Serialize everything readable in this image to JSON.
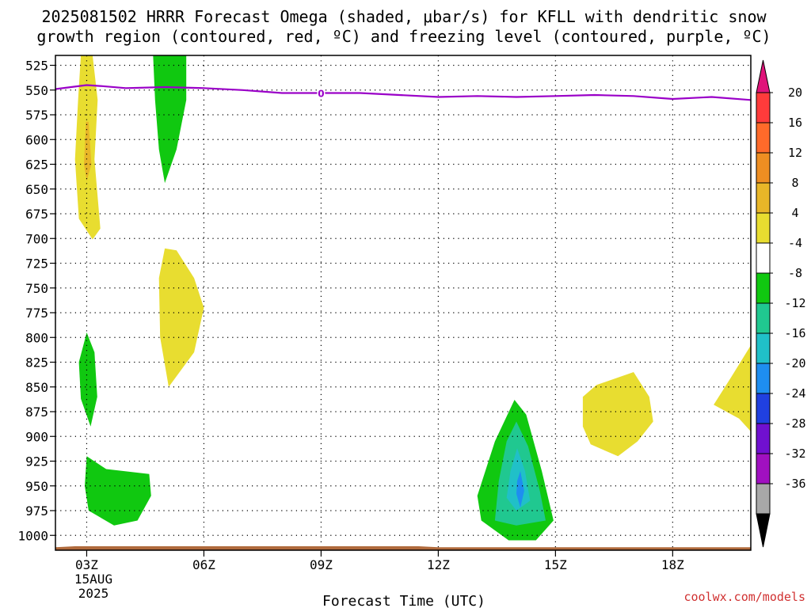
{
  "title_line1": "2025081502 HRRR Forecast Omega (shaded, μbar/s) for KFLL with dendritic snow",
  "title_line2": "growth region (contoured, red, ºC) and freezing level (contoured, purple, ºC)",
  "xlabel": "Forecast Time (UTC)",
  "date_line1": "15AUG",
  "date_line2": "2025",
  "credit": "coolwx.com/models",
  "chart_data": {
    "type": "heatmap",
    "x_unit": "hour UTC",
    "xlim": [
      2.2,
      20.0
    ],
    "ylim": [
      1015,
      515
    ],
    "y_ticks": [
      525,
      550,
      575,
      600,
      625,
      650,
      675,
      700,
      725,
      750,
      775,
      800,
      825,
      850,
      875,
      900,
      925,
      950,
      975,
      1000
    ],
    "x_ticks": [
      {
        "hour": 3,
        "label": "03Z"
      },
      {
        "hour": 6,
        "label": "06Z"
      },
      {
        "hour": 9,
        "label": "09Z"
      },
      {
        "hour": 12,
        "label": "12Z"
      },
      {
        "hour": 15,
        "label": "15Z"
      },
      {
        "hour": 18,
        "label": "18Z"
      }
    ],
    "grid": true,
    "colorbar": {
      "labels": [
        "20",
        "16",
        "12",
        "8",
        "4",
        "-4",
        "-8",
        "-12",
        "-16",
        "-20",
        "-24",
        "-28",
        "-32",
        "-36"
      ],
      "bins": [
        {
          "color": "#e0147a",
          "range": ">20"
        },
        {
          "color": "#ff3b3b",
          "range": "16 to 20"
        },
        {
          "color": "#ff6a2a",
          "range": "12 to 16"
        },
        {
          "color": "#ee8e22",
          "range": "8 to 12"
        },
        {
          "color": "#e8b628",
          "range": "4 to 8"
        },
        {
          "color": "#e8dd30",
          "range": "0 to 4"
        },
        {
          "color": "#ffffff",
          "range": "-4 to 0"
        },
        {
          "color": "#10c810",
          "range": "-8 to -4"
        },
        {
          "color": "#20c890",
          "range": "-12 to -8"
        },
        {
          "color": "#20c0c8",
          "range": "-16 to -12"
        },
        {
          "color": "#1e8ef0",
          "range": "-20 to -16"
        },
        {
          "color": "#2040e0",
          "range": "-24 to -20"
        },
        {
          "color": "#7010d0",
          "range": "-28 to -24"
        },
        {
          "color": "#a010c0",
          "range": "-32 to -28"
        },
        {
          "color": "#a8a8a8",
          "range": "-36 to -32"
        },
        {
          "color": "#000000",
          "range": "<-36"
        }
      ]
    },
    "freezing_level": {
      "color": "#9a00c8",
      "label": "0",
      "points": [
        [
          2.2,
          549
        ],
        [
          2.6,
          547
        ],
        [
          3.0,
          545
        ],
        [
          3.4,
          546
        ],
        [
          4.0,
          548
        ],
        [
          5.0,
          547
        ],
        [
          6.0,
          548
        ],
        [
          7.0,
          550
        ],
        [
          8.0,
          553
        ],
        [
          9.0,
          553
        ],
        [
          10.0,
          553
        ],
        [
          11.0,
          555
        ],
        [
          12.0,
          557
        ],
        [
          13.0,
          556
        ],
        [
          14.0,
          557
        ],
        [
          15.0,
          556
        ],
        [
          16.0,
          555
        ],
        [
          17.0,
          556
        ],
        [
          18.0,
          559
        ],
        [
          19.0,
          557
        ],
        [
          20.0,
          560
        ]
      ]
    },
    "surface": {
      "color": "#b06a3c",
      "points": [
        [
          2.2,
          1012
        ],
        [
          2.7,
          1011
        ],
        [
          5.0,
          1011
        ],
        [
          9.0,
          1011
        ],
        [
          11.5,
          1011
        ],
        [
          12.0,
          1012
        ],
        [
          20.0,
          1012
        ]
      ]
    },
    "features": [
      {
        "name": "upper-positive-band",
        "color": "#e8dd30",
        "points": [
          [
            2.85,
            515
          ],
          [
            3.15,
            515
          ],
          [
            3.28,
            560
          ],
          [
            3.2,
            620
          ],
          [
            3.35,
            690
          ],
          [
            3.15,
            701
          ],
          [
            2.8,
            680
          ],
          [
            2.7,
            620
          ],
          [
            2.78,
            560
          ]
        ]
      },
      {
        "name": "upper-positive-core",
        "color": "#e8b628",
        "points": [
          [
            2.98,
            582
          ],
          [
            3.05,
            582
          ],
          [
            3.12,
            625
          ],
          [
            3.0,
            642
          ],
          [
            2.93,
            625
          ]
        ]
      },
      {
        "name": "upper-negative-band",
        "color": "#10c810",
        "points": [
          [
            4.7,
            515
          ],
          [
            5.55,
            515
          ],
          [
            5.55,
            560
          ],
          [
            5.3,
            610
          ],
          [
            5.0,
            644
          ],
          [
            4.85,
            610
          ],
          [
            4.75,
            560
          ]
        ]
      },
      {
        "name": "mid-positive-band",
        "color": "#e8dd30",
        "points": [
          [
            5.0,
            710
          ],
          [
            5.3,
            712
          ],
          [
            5.75,
            740
          ],
          [
            6.0,
            770
          ],
          [
            5.75,
            815
          ],
          [
            5.1,
            850
          ],
          [
            4.88,
            800
          ],
          [
            4.85,
            740
          ]
        ]
      },
      {
        "name": "mid-negative-band",
        "color": "#10c810",
        "points": [
          [
            3.0,
            795
          ],
          [
            3.2,
            815
          ],
          [
            3.27,
            860
          ],
          [
            3.1,
            890
          ],
          [
            2.85,
            862
          ],
          [
            2.8,
            825
          ]
        ]
      },
      {
        "name": "lower-negative-band",
        "color": "#10c810",
        "points": [
          [
            3.0,
            920
          ],
          [
            3.5,
            933
          ],
          [
            4.6,
            938
          ],
          [
            4.65,
            960
          ],
          [
            4.3,
            985
          ],
          [
            3.7,
            990
          ],
          [
            3.05,
            975
          ],
          [
            2.95,
            950
          ]
        ]
      },
      {
        "name": "midday-negative-cell",
        "color": "#10c810",
        "points": [
          [
            13.95,
            863
          ],
          [
            14.25,
            878
          ],
          [
            14.65,
            935
          ],
          [
            14.95,
            985
          ],
          [
            14.5,
            1005
          ],
          [
            13.8,
            1005
          ],
          [
            13.1,
            985
          ],
          [
            13.0,
            960
          ],
          [
            13.45,
            905
          ]
        ]
      },
      {
        "name": "midday-mid-shade",
        "color": "#20c890",
        "points": [
          [
            14.0,
            885
          ],
          [
            14.3,
            910
          ],
          [
            14.6,
            955
          ],
          [
            14.75,
            985
          ],
          [
            14.0,
            990
          ],
          [
            13.45,
            985
          ],
          [
            13.55,
            945
          ],
          [
            13.75,
            905
          ]
        ]
      },
      {
        "name": "midday-inner-shade",
        "color": "#20c0c8",
        "points": [
          [
            14.02,
            912
          ],
          [
            14.22,
            935
          ],
          [
            14.35,
            965
          ],
          [
            14.0,
            975
          ],
          [
            13.75,
            962
          ],
          [
            13.85,
            935
          ]
        ]
      },
      {
        "name": "midday-core",
        "color": "#1e8ef0",
        "points": [
          [
            14.1,
            935
          ],
          [
            14.2,
            955
          ],
          [
            14.1,
            972
          ],
          [
            14.0,
            958
          ],
          [
            14.02,
            945
          ]
        ]
      },
      {
        "name": "afternoon-positive-band",
        "color": "#e8dd30",
        "points": [
          [
            16.05,
            848
          ],
          [
            17.0,
            835
          ],
          [
            17.4,
            860
          ],
          [
            17.5,
            885
          ],
          [
            17.1,
            905
          ],
          [
            16.6,
            920
          ],
          [
            15.9,
            908
          ],
          [
            15.7,
            890
          ],
          [
            15.7,
            860
          ]
        ]
      },
      {
        "name": "evening-positive-band",
        "color": "#e8dd30",
        "points": [
          [
            20.0,
            808
          ],
          [
            20.0,
            895
          ],
          [
            19.7,
            882
          ],
          [
            19.05,
            868
          ],
          [
            19.5,
            840
          ]
        ]
      }
    ]
  }
}
